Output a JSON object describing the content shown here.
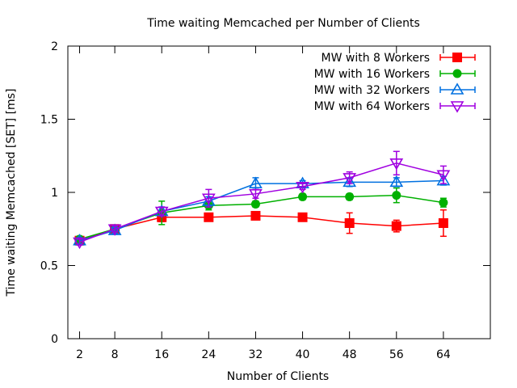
{
  "chart_data": {
    "type": "line",
    "title": "Time waiting Memcached per Number of Clients",
    "xlabel": "Number of Clients",
    "ylabel": "Time waiting Memcached [SET] [ms]",
    "xlim": [
      0,
      72
    ],
    "ylim": [
      0,
      2
    ],
    "xticks": [
      2,
      8,
      16,
      24,
      32,
      40,
      48,
      56,
      64
    ],
    "yticks": [
      0,
      0.5,
      1,
      1.5,
      2
    ],
    "ytick_labels": [
      "0",
      "0.5",
      "1",
      "1.5",
      "2"
    ],
    "grid": false,
    "legend_position": "top-right",
    "x": [
      2,
      8,
      16,
      24,
      32,
      40,
      48,
      56,
      64
    ],
    "series": [
      {
        "name": "MW with 8 Workers",
        "color": "#ff0000",
        "marker": "square",
        "values": [
          0.67,
          0.75,
          0.83,
          0.83,
          0.84,
          0.83,
          0.79,
          0.77,
          0.79
        ],
        "errors": [
          0.02,
          0.02,
          0.03,
          0.02,
          0.02,
          0.02,
          0.07,
          0.04,
          0.09
        ]
      },
      {
        "name": "MW with 16 Workers",
        "color": "#00b000",
        "marker": "circle",
        "values": [
          0.68,
          0.75,
          0.86,
          0.91,
          0.92,
          0.97,
          0.97,
          0.98,
          0.93
        ],
        "errors": [
          0.02,
          0.02,
          0.08,
          0.03,
          0.02,
          0.02,
          0.02,
          0.05,
          0.03
        ]
      },
      {
        "name": "MW with 32 Workers",
        "color": "#0070e0",
        "marker": "triangle",
        "values": [
          0.67,
          0.74,
          0.87,
          0.94,
          1.06,
          1.06,
          1.07,
          1.07,
          1.08
        ],
        "errors": [
          0.02,
          0.02,
          0.03,
          0.03,
          0.04,
          0.02,
          0.03,
          0.03,
          0.03
        ]
      },
      {
        "name": "MW with 64 Workers",
        "color": "#a000e0",
        "marker": "triangle-down",
        "values": [
          0.66,
          0.75,
          0.87,
          0.96,
          0.99,
          1.04,
          1.1,
          1.2,
          1.12
        ],
        "errors": [
          0.02,
          0.02,
          0.03,
          0.06,
          0.03,
          0.02,
          0.04,
          0.08,
          0.06
        ]
      }
    ]
  }
}
